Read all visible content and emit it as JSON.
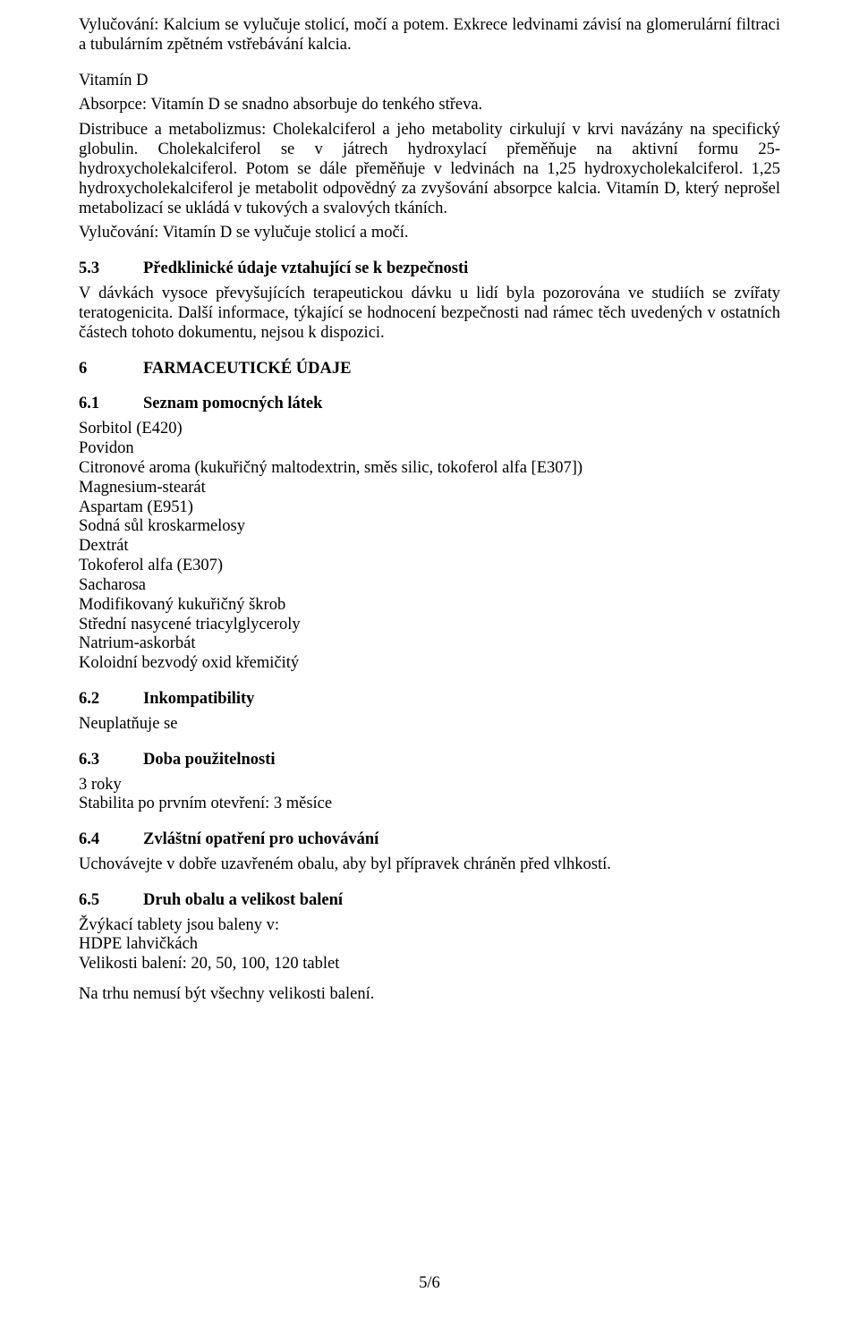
{
  "para_excretion": "Vylučování: Kalcium se vylučuje stolicí, močí a potem. Exkrece ledvinami závisí na glomerulární filtraci a tubulárním zpětném vstřebávání kalcia.",
  "para_vitd_heading": "Vitamín D",
  "para_vitd_absorption": "Absorpce: Vitamín D se snadno absorbuje do tenkého střeva.",
  "para_vitd_body": "Distribuce a metabolizmus: Cholekalciferol a jeho metabolity cirkulují v krvi navázány na specifický globulin. Cholekalciferol se v játrech hydroxylací přeměňuje na aktivní formu 25-hydroxycholekalciferol. Potom se dále přeměňuje v ledvinách na 1,25 hydroxycholekalciferol. 1,25 hydroxycholekalciferol je metabolit odpovědný za zvyšování absorpce kalcia. Vitamín D, který neprošel metabolizací se ukládá v tukových a svalových tkáních.",
  "para_vitd_excretion": "Vylučování: Vitamín D se vylučuje stolicí a močí.",
  "sec53_num": "5.3",
  "sec53_title": "Předklinické údaje vztahující se k bezpečnosti",
  "sec53_body": "V dávkách vysoce převyšujících terapeutickou dávku u lidí byla pozorována ve studiích se zvířaty teratogenicita. Další informace, týkající se hodnocení bezpečnosti nad rámec těch uvedených v ostatních částech tohoto dokumentu, nejsou k dispozici.",
  "sec6_num": "6",
  "sec6_title": "FARMACEUTICKÉ ÚDAJE",
  "sec61_num": "6.1",
  "sec61_title": "Seznam pomocných látek",
  "excipients": [
    "Sorbitol (E420)",
    "Povidon",
    "Citronové aroma (kukuřičný maltodextrin, směs silic, tokoferol alfa  [E307])",
    "Magnesium-stearát",
    "Aspartam (E951)",
    "Sodná sůl kroskarmelosy",
    "Dextrát",
    "Tokoferol alfa (E307)",
    "Sacharosa",
    "Modifikovaný kukuřičný škrob",
    "Střední nasycené triacylglyceroly",
    "Natrium-askorbát",
    "Koloidní bezvodý oxid křemičitý"
  ],
  "sec62_num": "6.2",
  "sec62_title": "Inkompatibility",
  "sec62_body": "Neuplatňuje se",
  "sec63_num": "6.3",
  "sec63_title": "Doba použitelnosti",
  "sec63_line1": "3 roky",
  "sec63_line2": "Stabilita po prvním otevření: 3 měsíce",
  "sec64_num": "6.4",
  "sec64_title": "Zvláštní opatření pro uchovávání",
  "sec64_body": "Uchovávejte v dobře uzavřeném obalu, aby byl přípravek chráněn před vlhkostí.",
  "sec65_num": "6.5",
  "sec65_title": "Druh obalu a velikost balení",
  "sec65_line1": "Žvýkací tablety jsou baleny v:",
  "sec65_line2": "HDPE lahvičkách",
  "sec65_line3": "Velikosti balení: 20, 50, 100, 120 tablet",
  "sec65_note": "Na trhu nemusí být všechny velikosti balení.",
  "footer": "5/6"
}
